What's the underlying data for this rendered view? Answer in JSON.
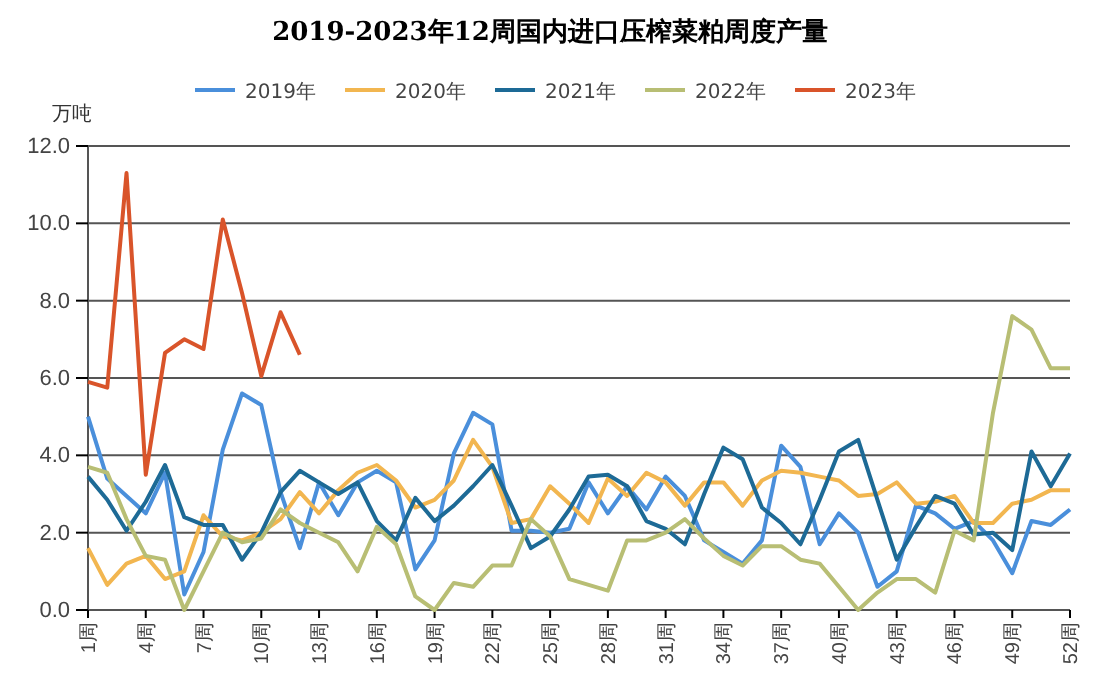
{
  "chart_data": {
    "type": "line",
    "title": "2019-2023年12周国内进口压榨菜粕周度产量",
    "ylabel": "万吨",
    "categories": [
      "1周",
      null,
      null,
      "4周",
      null,
      null,
      "7周",
      null,
      null,
      "10周",
      null,
      null,
      "13周",
      null,
      null,
      "16周",
      null,
      null,
      "19周",
      null,
      null,
      "22周",
      null,
      null,
      "25周",
      null,
      null,
      "28周",
      null,
      null,
      "31周",
      null,
      null,
      "34周",
      null,
      null,
      "37周",
      null,
      null,
      "40周",
      null,
      null,
      "43周",
      null,
      null,
      "46周",
      null,
      null,
      "49周",
      null,
      null,
      "52周"
    ],
    "series": [
      {
        "name": "2019年",
        "color": "#4a8fdb",
        "values": [
          5.0,
          3.4,
          2.95,
          2.5,
          3.55,
          0.4,
          1.5,
          4.15,
          5.6,
          5.3,
          3.05,
          1.6,
          3.3,
          2.45,
          3.3,
          3.6,
          3.3,
          1.05,
          1.8,
          4.05,
          5.1,
          4.8,
          2.05,
          2.05,
          2.0,
          2.1,
          3.3,
          2.5,
          3.2,
          2.6,
          3.45,
          2.95,
          1.8,
          1.5,
          1.2,
          1.8,
          4.25,
          3.7,
          1.7,
          2.5,
          2.0,
          0.6,
          1.0,
          2.7,
          2.5,
          2.1,
          2.3,
          1.8,
          0.95,
          2.3,
          2.2,
          2.6
        ]
      },
      {
        "name": "2020年",
        "color": "#f2b650",
        "values": [
          1.6,
          0.65,
          1.2,
          1.4,
          0.8,
          1.0,
          2.45,
          1.9,
          1.8,
          2.0,
          2.35,
          3.05,
          2.5,
          3.1,
          3.55,
          3.75,
          3.35,
          2.65,
          2.85,
          3.35,
          4.4,
          3.7,
          2.25,
          2.35,
          3.2,
          2.75,
          2.25,
          3.4,
          2.95,
          3.55,
          3.3,
          2.7,
          3.3,
          3.3,
          2.7,
          3.35,
          3.6,
          3.55,
          3.45,
          3.35,
          2.95,
          3.0,
          3.3,
          2.75,
          2.8,
          2.95,
          2.25,
          2.25,
          2.75,
          2.85,
          3.1,
          3.1
        ]
      },
      {
        "name": "2021年",
        "color": "#1d6a96",
        "values": [
          3.45,
          2.85,
          2.05,
          2.8,
          3.75,
          2.4,
          2.2,
          2.2,
          1.3,
          2.0,
          3.05,
          3.6,
          3.3,
          3.0,
          3.3,
          2.3,
          1.8,
          2.9,
          2.3,
          2.7,
          3.2,
          3.75,
          2.7,
          1.6,
          1.9,
          2.6,
          3.45,
          3.5,
          3.2,
          2.3,
          2.1,
          1.7,
          3.0,
          4.2,
          3.9,
          2.65,
          2.25,
          1.7,
          2.85,
          4.1,
          4.4,
          2.85,
          1.3,
          2.15,
          2.95,
          2.75,
          1.95,
          2.0,
          1.55,
          4.1,
          3.2,
          4.05
        ]
      },
      {
        "name": "2022年",
        "color": "#b8be74",
        "values": [
          3.7,
          3.55,
          2.35,
          1.4,
          1.3,
          0.0,
          1.0,
          2.0,
          1.75,
          1.85,
          2.6,
          2.25,
          2.0,
          1.75,
          1.0,
          2.15,
          1.7,
          0.35,
          0.0,
          0.7,
          0.6,
          1.15,
          1.15,
          2.35,
          1.9,
          0.8,
          0.65,
          0.5,
          1.8,
          1.8,
          2.0,
          2.35,
          1.85,
          1.4,
          1.15,
          1.65,
          1.65,
          1.3,
          1.2,
          0.6,
          0.0,
          0.45,
          0.8,
          0.8,
          0.45,
          2.05,
          1.8,
          5.1,
          7.6,
          7.25,
          6.25,
          6.25
        ]
      },
      {
        "name": "2023年",
        "color": "#d9542a",
        "values": [
          5.9,
          5.75,
          11.3,
          3.5,
          6.65,
          7.0,
          6.75,
          10.1,
          8.2,
          6.05,
          7.7,
          6.6,
          null,
          null,
          null,
          null,
          null,
          null,
          null,
          null,
          null,
          null,
          null,
          null,
          null,
          null,
          null,
          null,
          null,
          null,
          null,
          null,
          null,
          null,
          null,
          null,
          null,
          null,
          null,
          null,
          null,
          null,
          null,
          null,
          null,
          null,
          null,
          null,
          null,
          null,
          null,
          null
        ]
      }
    ],
    "ylim": [
      0,
      12
    ],
    "yticks": [
      {
        "value": 0,
        "label": "0.0"
      },
      {
        "value": 2,
        "label": "2.0"
      },
      {
        "value": 4,
        "label": "4.0"
      },
      {
        "value": 6,
        "label": "6.0"
      },
      {
        "value": 8,
        "label": "8.0"
      },
      {
        "value": 10,
        "label": "10.0"
      },
      {
        "value": 12,
        "label": "12.0"
      }
    ],
    "grid": "y",
    "legend": "top",
    "marker": "none",
    "line_style": "solid"
  }
}
